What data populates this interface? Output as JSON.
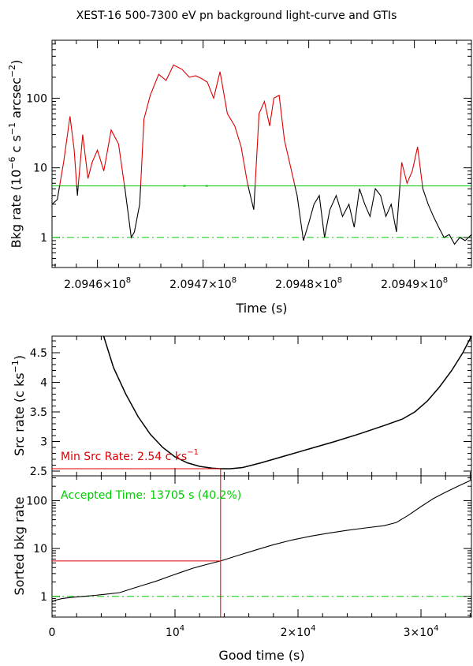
{
  "title": "XEST-16 500-7300 eV pn background light-curve and GTIs",
  "colors": {
    "red": "#dd0000",
    "green": "#00cc00",
    "black": "#000000"
  },
  "chart_data": [
    {
      "id": "lightcurve",
      "type": "line",
      "xlabel": "Time (s)",
      "ylabel": "Bkg rate (10^-6 c s^-1 arcsec^-2)",
      "xscale": "linear",
      "yscale": "log",
      "xlim": [
        209455700,
        209495400
      ],
      "ylim": [
        0.37,
        680
      ],
      "xticks": [
        209460000,
        209470000,
        209480000,
        209490000
      ],
      "xtick_labels": [
        "2.0946×10^8",
        "2.0947×10^8",
        "2.0948×10^8",
        "2.0949×10^8"
      ],
      "yticks": [
        1,
        10,
        100
      ],
      "ytick_labels": [
        "1",
        "10",
        "100"
      ],
      "threshold": 5.5,
      "reference_level": 1.0,
      "series": [
        {
          "x": [
            209455700,
            209456200,
            209456800,
            209457400,
            209457800,
            209458100,
            209458600,
            209459100,
            209459500,
            209460000,
            209460600,
            209461300,
            209462000,
            209462600,
            209463200,
            209463500,
            209464000,
            209464400,
            209465000,
            209465800,
            209466500,
            209467200,
            209468000,
            209468700,
            209469300,
            209469900,
            209470400,
            209471000,
            209471600,
            209472300,
            209473000,
            209473600,
            209474200,
            209474800,
            209475300,
            209475800,
            209476300,
            209476700,
            209477200,
            209477700,
            209478300,
            209478900,
            209479500,
            209480000,
            209480500,
            209481000,
            209481500,
            209482000,
            209482600,
            209483200,
            209483800,
            209484300,
            209484800,
            209485300,
            209485800,
            209486300,
            209486800,
            209487300,
            209487800,
            209488300,
            209488800,
            209489300,
            209489800,
            209490300,
            209490800,
            209491300,
            209491800,
            209492300,
            209492800,
            209493300,
            209493800,
            209494300,
            209494800,
            209495400
          ],
          "y": [
            3.0,
            3.5,
            12,
            55,
            18,
            4.0,
            30,
            7.0,
            12,
            18,
            9.0,
            35,
            22,
            5.0,
            1.0,
            1.2,
            3.0,
            50,
            110,
            220,
            180,
            300,
            260,
            200,
            210,
            190,
            170,
            100,
            240,
            60,
            40,
            20,
            6,
            2.5,
            60,
            90,
            40,
            100,
            110,
            25,
            10,
            4.0,
            0.9,
            1.6,
            3.0,
            4.0,
            1.0,
            2.5,
            4.0,
            2.0,
            3.0,
            1.4,
            5.0,
            3.0,
            2.0,
            5.0,
            4.0,
            2.0,
            3.0,
            1.2,
            12,
            6,
            9,
            20,
            5,
            3,
            2,
            1.4,
            1.0,
            1.1,
            0.8,
            1.0,
            0.9,
            1.1
          ]
        }
      ],
      "gti_points": [
        {
          "x": 209468200,
          "y": 5.5
        },
        {
          "x": 209470300,
          "y": 5.5
        }
      ]
    },
    {
      "id": "src-rate",
      "type": "line",
      "xlabel": "",
      "ylabel": "Src rate (c ks^-1)",
      "xscale": "linear",
      "yscale": "linear",
      "xlim": [
        0,
        34100
      ],
      "ylim": [
        2.42,
        4.78
      ],
      "yticks": [
        2.5,
        3,
        3.5,
        4,
        4.5
      ],
      "ytick_labels": [
        "2.5",
        "3",
        "3.5",
        "4",
        "4.5"
      ],
      "annotation": {
        "label": "Min Src Rate:",
        "value": "2.54 c ks^-1"
      },
      "min_point": {
        "x": 13705,
        "y": 2.54
      },
      "series": [
        {
          "x": [
            4200,
            5000,
            6000,
            7000,
            8000,
            9000,
            10000,
            11000,
            12000,
            13000,
            13705,
            14500,
            15500,
            17000,
            19000,
            21000,
            23000,
            25000,
            27000,
            28500,
            29500,
            30500,
            31500,
            32500,
            33400,
            34100
          ],
          "y": [
            4.78,
            4.25,
            3.8,
            3.42,
            3.12,
            2.9,
            2.74,
            2.64,
            2.58,
            2.55,
            2.54,
            2.54,
            2.56,
            2.64,
            2.76,
            2.88,
            3.0,
            3.13,
            3.27,
            3.38,
            3.5,
            3.68,
            3.92,
            4.2,
            4.5,
            4.78
          ]
        }
      ]
    },
    {
      "id": "sorted-bkg",
      "type": "line",
      "xlabel": "Good time (s)",
      "ylabel": "Sorted bkg rate",
      "xscale": "linear",
      "yscale": "log",
      "xlim": [
        0,
        34100
      ],
      "ylim": [
        0.37,
        330
      ],
      "xticks": [
        0,
        10000,
        20000,
        30000
      ],
      "xtick_labels": [
        "0",
        "10^4",
        "2×10^4",
        "3×10^4"
      ],
      "yticks": [
        1,
        10,
        100
      ],
      "ytick_labels": [
        "1",
        "10",
        "100"
      ],
      "annotation": {
        "label": "Accepted Time:",
        "value": "13705 s (40.2%)"
      },
      "threshold": 5.5,
      "reference_level": 1.0,
      "accepted_time": 13705,
      "series": [
        {
          "x": [
            0,
            400,
            800,
            1500,
            2500,
            3500,
            4500,
            5500,
            6500,
            7500,
            8500,
            9500,
            10500,
            11500,
            12500,
            13705,
            15000,
            16500,
            18000,
            19500,
            21000,
            22500,
            24000,
            25500,
            27000,
            28000,
            29000,
            30000,
            31000,
            32000,
            33000,
            34100
          ],
          "y": [
            0.78,
            0.85,
            0.9,
            0.95,
            1.0,
            1.05,
            1.12,
            1.2,
            1.45,
            1.75,
            2.1,
            2.6,
            3.2,
            3.9,
            4.6,
            5.5,
            7.0,
            9.2,
            12,
            15,
            18,
            21,
            24,
            27,
            30,
            35,
            50,
            75,
            110,
            150,
            200,
            270
          ]
        }
      ]
    }
  ]
}
